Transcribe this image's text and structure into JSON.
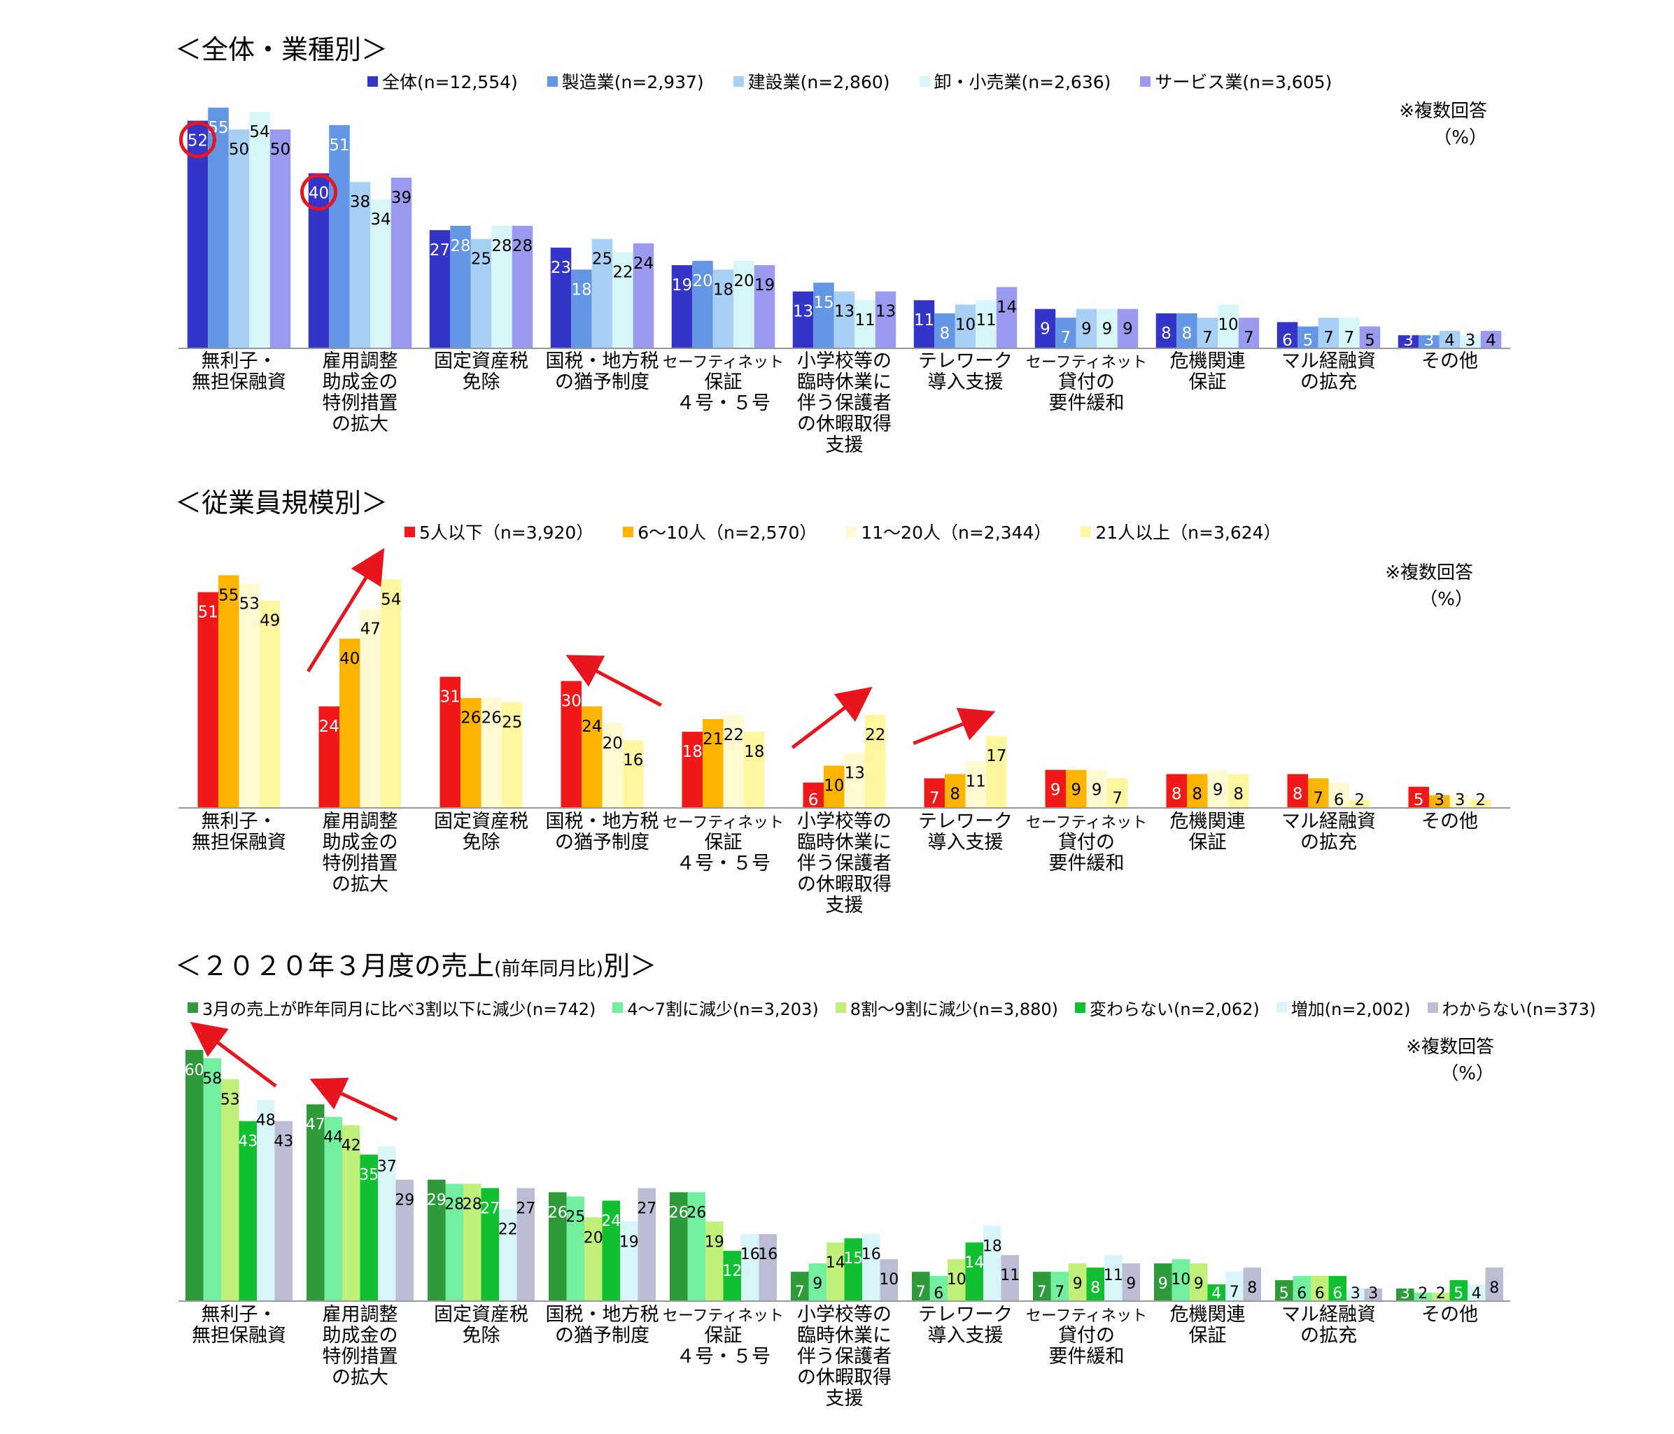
{
  "panels": [
    {
      "title": "＜全体・業種別＞",
      "note": [
        "※複数回答",
        "（%）"
      ],
      "chart_data": {
        "type": "bar",
        "categories": [
          [
            "無利子・",
            "無担保融資"
          ],
          [
            "雇用調整",
            "助成金の",
            "特例措置",
            "の拡大"
          ],
          [
            "固定資産税",
            "免除"
          ],
          [
            "国税・地方税",
            "の猶予制度"
          ],
          [
            "セーフティネット",
            "保証",
            "４号・５号"
          ],
          [
            "小学校等の",
            "臨時休業に",
            "伴う保護者",
            "の休暇取得",
            "支援"
          ],
          [
            "テレワーク",
            "導入支援"
          ],
          [
            "セーフティネット",
            "貸付の",
            "要件緩和"
          ],
          [
            "危機関連",
            "保証"
          ],
          [
            "マル経融資",
            "の拡充"
          ],
          [
            "その他"
          ]
        ],
        "series": [
          {
            "name": "全体(n=12,554)",
            "color": "#3434c8",
            "label_color": "#ffffff",
            "values": [
              52,
              40,
              27,
              23,
              19,
              13,
              11,
              9,
              8,
              6,
              3
            ]
          },
          {
            "name": "製造業(n=2,937)",
            "color": "#6496e6",
            "label_color": "#ffffff",
            "values": [
              55,
              51,
              28,
              18,
              20,
              15,
              8,
              7,
              8,
              5,
              3
            ]
          },
          {
            "name": "建設業(n=2,860)",
            "color": "#a8d0f4",
            "label_color": "#000000",
            "values": [
              50,
              38,
              25,
              25,
              18,
              13,
              10,
              9,
              7,
              7,
              4
            ]
          },
          {
            "name": "卸・小売業(n=2,636)",
            "color": "#d6f6fa",
            "label_color": "#000000",
            "values": [
              54,
              34,
              28,
              22,
              20,
              11,
              11,
              9,
              10,
              7,
              3
            ]
          },
          {
            "name": "サービス業(n=3,605)",
            "color": "#9a9af0",
            "label_color": "#000000",
            "values": [
              50,
              39,
              28,
              24,
              19,
              13,
              14,
              9,
              7,
              5,
              4
            ]
          }
        ],
        "ylim": [
          0,
          62
        ],
        "annotations": [
          {
            "kind": "circle",
            "series": 0,
            "category": 0
          },
          {
            "kind": "circle",
            "series": 0,
            "category": 1
          }
        ]
      }
    },
    {
      "title": "＜従業員規模別＞",
      "note": [
        "※複数回答",
        "（%）"
      ],
      "chart_data": {
        "type": "bar",
        "categories": [
          [
            "無利子・",
            "無担保融資"
          ],
          [
            "雇用調整",
            "助成金の",
            "特例措置",
            "の拡大"
          ],
          [
            "固定資産税",
            "免除"
          ],
          [
            "国税・地方税",
            "の猶予制度"
          ],
          [
            "セーフティネット",
            "保証",
            "４号・５号"
          ],
          [
            "小学校等の",
            "臨時休業に",
            "伴う保護者",
            "の休暇取得",
            "支援"
          ],
          [
            "テレワーク",
            "導入支援"
          ],
          [
            "セーフティネット",
            "貸付の",
            "要件緩和"
          ],
          [
            "危機関連",
            "保証"
          ],
          [
            "マル経融資",
            "の拡充"
          ],
          [
            "その他"
          ]
        ],
        "series": [
          {
            "name": "5人以下（n=3,920）",
            "color": "#f01818",
            "label_color": "#ffffff",
            "values": [
              51,
              24,
              31,
              30,
              18,
              6,
              7,
              9,
              8,
              8,
              5
            ]
          },
          {
            "name": "6～10人（n=2,570）",
            "color": "#ffb400",
            "label_color": "#000000",
            "values": [
              55,
              40,
              26,
              24,
              21,
              10,
              8,
              9,
              8,
              7,
              3
            ]
          },
          {
            "name": "11～20人（n=2,344）",
            "color": "#fffad2",
            "label_color": "#000000",
            "values": [
              53,
              47,
              26,
              20,
              22,
              13,
              11,
              9,
              9,
              6,
              3
            ]
          },
          {
            "name": "21人以上（n=3,624）",
            "color": "#fff7a0",
            "label_color": "#000000",
            "values": [
              49,
              54,
              25,
              16,
              18,
              22,
              17,
              7,
              8,
              2,
              2
            ]
          }
        ],
        "ylim": [
          0,
          62
        ],
        "annotations": [
          {
            "kind": "arrow",
            "category": 1,
            "from_series": 0,
            "to_series": 3,
            "from_value": 24,
            "to_value": 54
          },
          {
            "kind": "arrow",
            "category": 3,
            "from_series": 3,
            "to_series": 0,
            "from_value": 16,
            "to_value": 30
          },
          {
            "kind": "arrow",
            "category": 5,
            "from_series": 0,
            "to_series": 3,
            "from_value": 6,
            "to_value": 22
          },
          {
            "kind": "arrow",
            "category": 6,
            "from_series": 0,
            "to_series": 3,
            "from_value": 7,
            "to_value": 17
          }
        ]
      }
    },
    {
      "title": "＜２０２０年３月度の売上",
      "title_small": "(前年同月比)",
      "title_tail": "別＞",
      "note": [
        "※複数回答",
        "（%）"
      ],
      "chart_data": {
        "type": "bar",
        "categories": [
          [
            "無利子・",
            "無担保融資"
          ],
          [
            "雇用調整",
            "助成金の",
            "特例措置",
            "の拡大"
          ],
          [
            "固定資産税",
            "免除"
          ],
          [
            "国税・地方税",
            "の猶予制度"
          ],
          [
            "セーフティネット",
            "保証",
            "４号・５号"
          ],
          [
            "小学校等の",
            "臨時休業に",
            "伴う保護者",
            "の休暇取得",
            "支援"
          ],
          [
            "テレワーク",
            "導入支援"
          ],
          [
            "セーフティネット",
            "貸付の",
            "要件緩和"
          ],
          [
            "危機関連",
            "保証"
          ],
          [
            "マル経融資",
            "の拡充"
          ],
          [
            "その他"
          ]
        ],
        "series": [
          {
            "name": "3月の売上が昨年同月に比べ3割以下に減少(n=742)",
            "color": "#2e9a3a",
            "label_color": "#ffffff",
            "values": [
              60,
              47,
              29,
              26,
              26,
              7,
              7,
              7,
              9,
              5,
              3
            ]
          },
          {
            "name": "4～7割に減少(n=3,203)",
            "color": "#72f0a0",
            "label_color": "#000000",
            "values": [
              58,
              44,
              28,
              25,
              26,
              9,
              6,
              7,
              10,
              6,
              2
            ]
          },
          {
            "name": "8割～9割に減少(n=3,880)",
            "color": "#c0f07a",
            "label_color": "#000000",
            "values": [
              53,
              42,
              28,
              20,
              19,
              14,
              10,
              9,
              9,
              6,
              2
            ]
          },
          {
            "name": "変わらない(n=2,062)",
            "color": "#10c030",
            "label_color": "#ffffff",
            "values": [
              43,
              35,
              27,
              24,
              12,
              15,
              14,
              8,
              4,
              6,
              5
            ]
          },
          {
            "name": "増加(n=2,002)",
            "color": "#d8f6fa",
            "label_color": "#000000",
            "values": [
              48,
              37,
              22,
              19,
              16,
              16,
              18,
              11,
              7,
              3,
              4
            ]
          },
          {
            "name": "わからない(n=373)",
            "color": "#bcbcd4",
            "label_color": "#000000",
            "values": [
              43,
              29,
              27,
              27,
              16,
              10,
              11,
              9,
              8,
              3,
              8
            ]
          }
        ],
        "ylim": [
          0,
          66
        ],
        "annotations": [
          {
            "kind": "arrow",
            "category": 0,
            "from_series": 3,
            "to_series": 0,
            "from_value": 43,
            "to_value": 60
          },
          {
            "kind": "arrow",
            "category": 1,
            "from_series": 3,
            "to_series": 0,
            "from_value": 35,
            "to_value": 47
          }
        ]
      }
    }
  ]
}
